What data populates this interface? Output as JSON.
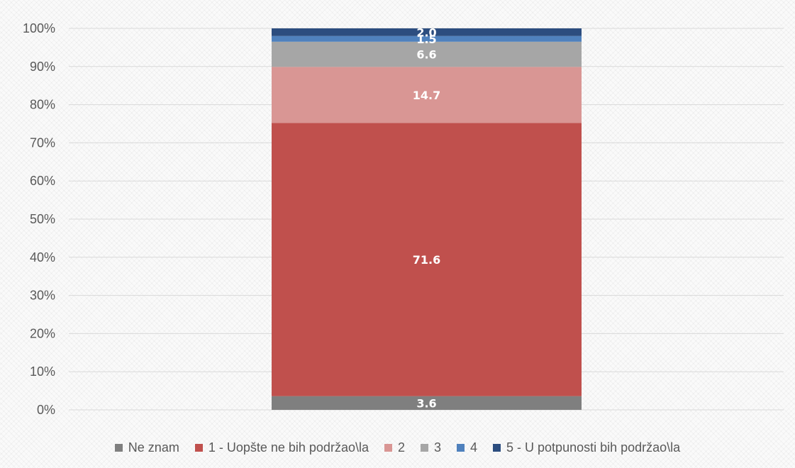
{
  "chart_data": {
    "type": "bar",
    "stacked": true,
    "percent_axis": true,
    "categories": [
      ""
    ],
    "ylim": [
      0,
      100
    ],
    "yticks": [
      "0%",
      "10%",
      "20%",
      "30%",
      "40%",
      "50%",
      "60%",
      "70%",
      "80%",
      "90%",
      "100%"
    ],
    "grid": true,
    "legend_position": "bottom",
    "series": [
      {
        "name": "Ne znam",
        "values": [
          3.6
        ],
        "label": "3.6",
        "color": "#7f7f7f"
      },
      {
        "name": "1 - Uopšte ne bih podržao\\la",
        "values": [
          71.6
        ],
        "label": "71.6",
        "color": "#c0504d"
      },
      {
        "name": "2",
        "values": [
          14.7
        ],
        "label": "14.7",
        "color": "#d99694"
      },
      {
        "name": "3",
        "values": [
          6.6
        ],
        "label": "6.6",
        "color": "#a6a6a6"
      },
      {
        "name": "4",
        "values": [
          1.5
        ],
        "label": "1.5",
        "color": "#4f81bd"
      },
      {
        "name": "5 - U potpunosti bih podržao\\la",
        "values": [
          2.0
        ],
        "label": "2.0",
        "color": "#2c4d7f"
      }
    ]
  }
}
